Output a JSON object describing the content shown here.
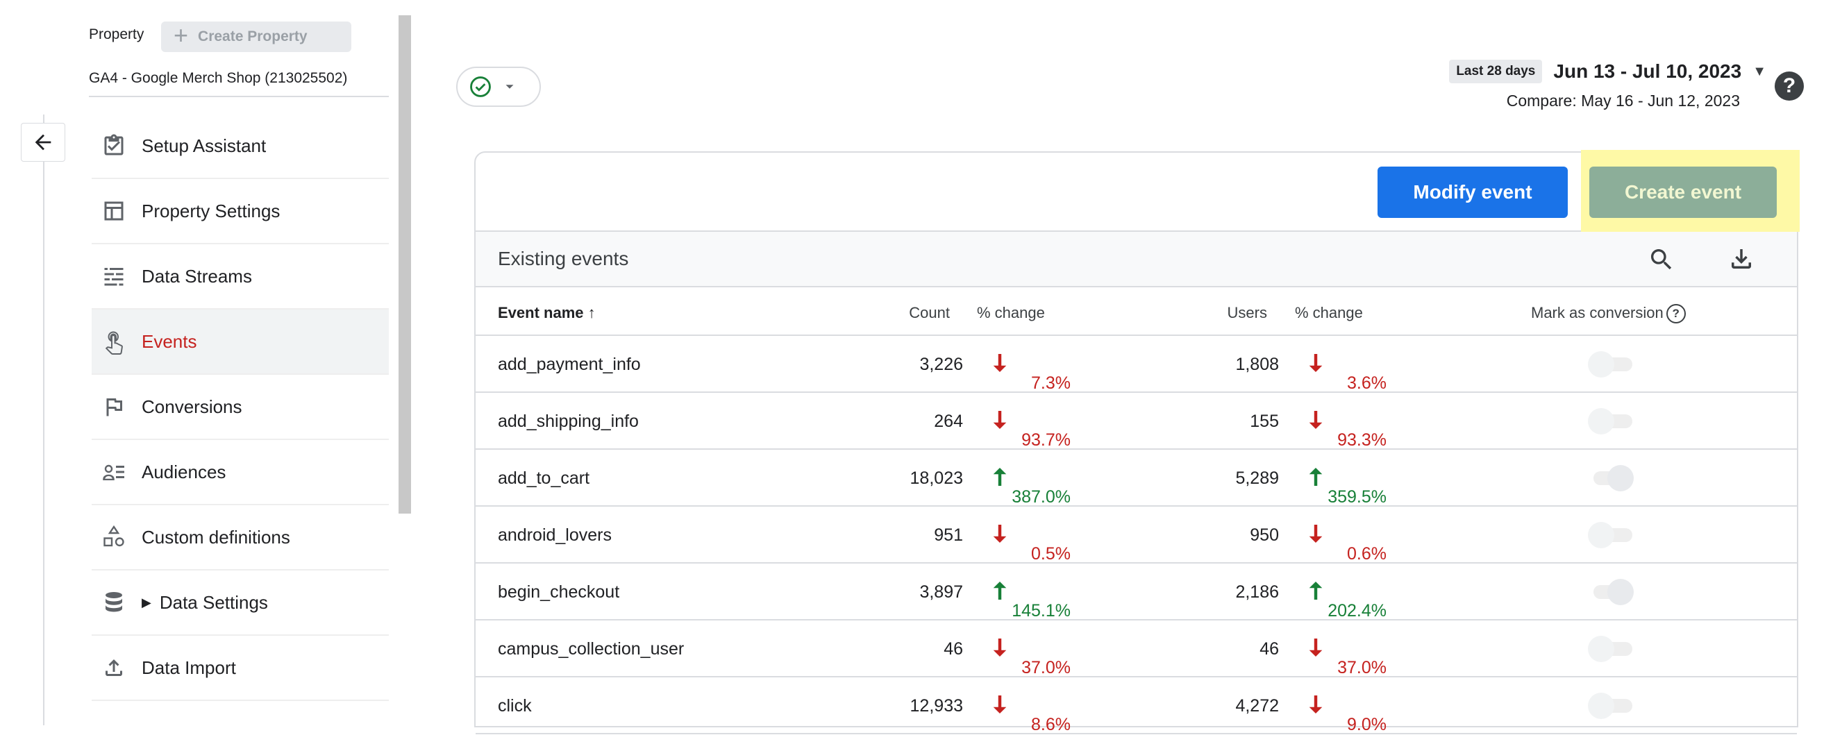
{
  "property": {
    "label": "Property",
    "create_button": "Create Property",
    "name": "GA4 - Google Merch Shop (213025502)"
  },
  "nav": {
    "items": [
      {
        "label": "Setup Assistant",
        "icon": "clipboard-check-icon"
      },
      {
        "label": "Property Settings",
        "icon": "layout-icon"
      },
      {
        "label": "Data Streams",
        "icon": "streams-icon"
      },
      {
        "label": "Events",
        "icon": "touch-icon",
        "active": true
      },
      {
        "label": "Conversions",
        "icon": "flag-icon"
      },
      {
        "label": "Audiences",
        "icon": "audience-icon"
      },
      {
        "label": "Custom definitions",
        "icon": "shapes-icon"
      },
      {
        "label": "Data Settings",
        "icon": "database-icon",
        "caret": "▶"
      },
      {
        "label": "Data Import",
        "icon": "upload-icon"
      }
    ]
  },
  "date": {
    "badge": "Last 28 days",
    "range": "Jun 13 - Jul 10, 2023",
    "compare": "Compare: May 16 - Jun 12, 2023"
  },
  "help_label": "?",
  "toolbar": {
    "modify_label": "Modify event",
    "create_label": "Create event"
  },
  "table": {
    "title": "Existing events",
    "headers": {
      "name": "Event name",
      "count": "Count",
      "pct1": "% change",
      "users": "Users",
      "pct2": "% change",
      "conversion": "Mark as conversion"
    },
    "rows": [
      {
        "name": "add_payment_info",
        "count": "3,226",
        "count_change": "7.3%",
        "count_dir": "down",
        "users": "1,808",
        "users_change": "3.6%",
        "users_dir": "down",
        "conversion": false
      },
      {
        "name": "add_shipping_info",
        "count": "264",
        "count_change": "93.7%",
        "count_dir": "down",
        "users": "155",
        "users_change": "93.3%",
        "users_dir": "down",
        "conversion": false
      },
      {
        "name": "add_to_cart",
        "count": "18,023",
        "count_change": "387.0%",
        "count_dir": "up",
        "users": "5,289",
        "users_change": "359.5%",
        "users_dir": "up",
        "conversion": true
      },
      {
        "name": "android_lovers",
        "count": "951",
        "count_change": "0.5%",
        "count_dir": "down",
        "users": "950",
        "users_change": "0.6%",
        "users_dir": "down",
        "conversion": false
      },
      {
        "name": "begin_checkout",
        "count": "3,897",
        "count_change": "145.1%",
        "count_dir": "up",
        "users": "2,186",
        "users_change": "202.4%",
        "users_dir": "up",
        "conversion": true
      },
      {
        "name": "campus_collection_user",
        "count": "46",
        "count_change": "37.0%",
        "count_dir": "down",
        "users": "46",
        "users_change": "37.0%",
        "users_dir": "down",
        "conversion": false
      },
      {
        "name": "click",
        "count": "12,933",
        "count_change": "8.6%",
        "count_dir": "down",
        "users": "4,272",
        "users_change": "9.0%",
        "users_dir": "down",
        "conversion": false
      }
    ]
  },
  "colors": {
    "primary": "#1a73e8",
    "active_nav": "#c5221f",
    "down": "#c5221f",
    "up": "#188038",
    "highlight": "#fef9a6"
  }
}
